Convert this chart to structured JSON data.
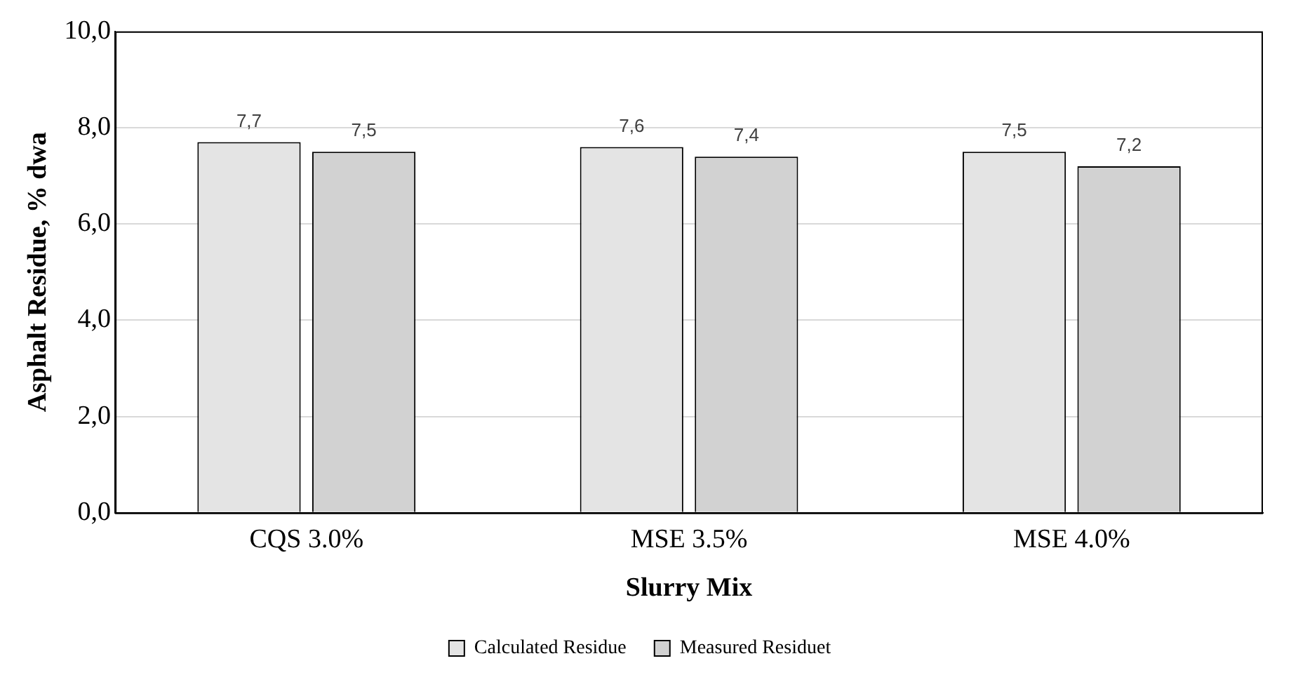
{
  "chart_data": {
    "type": "bar",
    "xlabel": "Slurry Mix",
    "ylabel": "Asphalt Residue, % dwa",
    "categories": [
      "CQS 3.0%",
      "MSE 3.5%",
      "MSE 4.0%"
    ],
    "series": [
      {
        "name": "Calculated Residue",
        "color": "#e4e4e4",
        "values": [
          7.7,
          7.6,
          7.5
        ],
        "value_labels": [
          "7,7",
          "7,6",
          "7,5"
        ]
      },
      {
        "name": "Measured Residuet",
        "color": "#d2d2d2",
        "values": [
          7.5,
          7.4,
          7.2
        ],
        "value_labels": [
          "7,5",
          "7,4",
          "7,2"
        ]
      }
    ],
    "ylim": [
      0,
      10
    ],
    "yticks": [
      {
        "value": 0,
        "label": "0,0"
      },
      {
        "value": 2,
        "label": "2,0"
      },
      {
        "value": 4,
        "label": "4,0"
      },
      {
        "value": 6,
        "label": "6,0"
      },
      {
        "value": 8,
        "label": "8,0"
      },
      {
        "value": 10,
        "label": "10,0"
      }
    ],
    "grid": "y",
    "legend": "bottom"
  }
}
